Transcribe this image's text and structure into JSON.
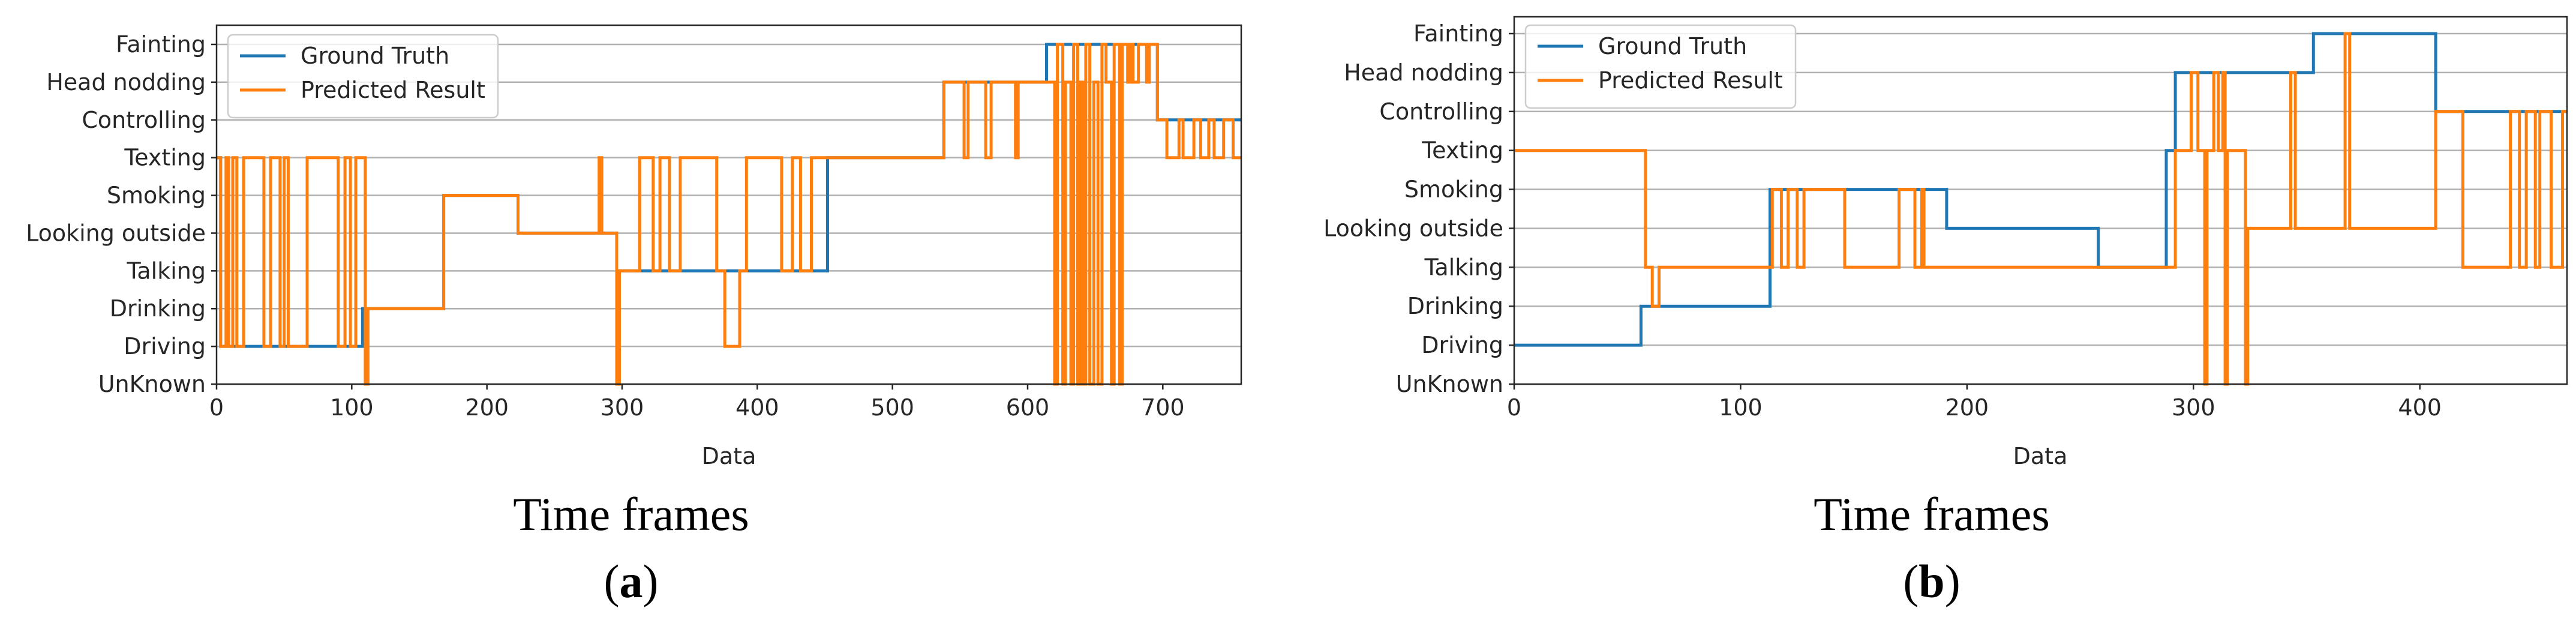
{
  "colors": {
    "ground_truth": "#1f77b4",
    "predicted": "#ff7f0e"
  },
  "chart_data": [
    {
      "type": "line",
      "panel": "a",
      "xlabel": "Data",
      "ylabel": "",
      "caption": "Time frames",
      "panel_label_open": "(",
      "panel_label_letter": "a",
      "panel_label_close": ")",
      "xlim": [
        0,
        758
      ],
      "xticks": [
        0,
        100,
        200,
        300,
        400,
        500,
        600,
        700
      ],
      "categories": [
        "UnKnown",
        "Driving",
        "Drinking",
        "Talking",
        "Looking outside",
        "Smoking",
        "Texting",
        "Controlling",
        "Head nodding",
        "Fainting"
      ],
      "grid": true,
      "legend_position": "top-left",
      "series": [
        {
          "name": "Ground Truth",
          "color": "#1f77b4",
          "points": [
            [
              0,
              6
            ],
            [
              3,
              6
            ],
            [
              3,
              1
            ],
            [
              108,
              1
            ],
            [
              108,
              2
            ],
            [
              168,
              2
            ],
            [
              168,
              5
            ],
            [
              223,
              5
            ],
            [
              223,
              4
            ],
            [
              296,
              4
            ],
            [
              296,
              3
            ],
            [
              452,
              3
            ],
            [
              452,
              6
            ],
            [
              538,
              6
            ],
            [
              538,
              8
            ],
            [
              614,
              8
            ],
            [
              614,
              9
            ],
            [
              696,
              9
            ],
            [
              696,
              7
            ],
            [
              758,
              7
            ]
          ]
        },
        {
          "name": "Predicted Result",
          "color": "#ff7f0e",
          "points": [
            [
              0,
              6
            ],
            [
              3,
              6
            ],
            [
              3,
              1
            ],
            [
              7,
              1
            ],
            [
              7,
              6
            ],
            [
              9,
              6
            ],
            [
              9,
              1
            ],
            [
              12,
              1
            ],
            [
              12,
              6
            ],
            [
              15,
              6
            ],
            [
              15,
              1
            ],
            [
              20,
              1
            ],
            [
              20,
              6
            ],
            [
              35,
              6
            ],
            [
              35,
              1
            ],
            [
              40,
              1
            ],
            [
              40,
              6
            ],
            [
              47,
              6
            ],
            [
              47,
              1
            ],
            [
              50,
              1
            ],
            [
              50,
              6
            ],
            [
              53,
              6
            ],
            [
              53,
              1
            ],
            [
              67,
              1
            ],
            [
              67,
              6
            ],
            [
              90,
              6
            ],
            [
              90,
              1
            ],
            [
              95,
              1
            ],
            [
              95,
              6
            ],
            [
              99,
              6
            ],
            [
              99,
              1
            ],
            [
              103,
              1
            ],
            [
              103,
              6
            ],
            [
              110,
              6
            ],
            [
              110,
              0
            ],
            [
              112,
              0
            ],
            [
              112,
              2
            ],
            [
              168,
              2
            ],
            [
              168,
              5
            ],
            [
              223,
              5
            ],
            [
              223,
              4
            ],
            [
              283,
              4
            ],
            [
              283,
              6
            ],
            [
              285,
              6
            ],
            [
              285,
              4
            ],
            [
              296,
              4
            ],
            [
              296,
              0
            ],
            [
              298,
              0
            ],
            [
              298,
              3
            ],
            [
              313,
              3
            ],
            [
              313,
              6
            ],
            [
              323,
              6
            ],
            [
              323,
              3
            ],
            [
              328,
              3
            ],
            [
              328,
              6
            ],
            [
              335,
              6
            ],
            [
              335,
              3
            ],
            [
              343,
              3
            ],
            [
              343,
              6
            ],
            [
              370,
              6
            ],
            [
              370,
              3
            ],
            [
              376,
              3
            ],
            [
              376,
              1
            ],
            [
              387,
              1
            ],
            [
              387,
              3
            ],
            [
              392,
              3
            ],
            [
              392,
              6
            ],
            [
              418,
              6
            ],
            [
              418,
              3
            ],
            [
              426,
              3
            ],
            [
              426,
              6
            ],
            [
              432,
              6
            ],
            [
              432,
              3
            ],
            [
              440,
              3
            ],
            [
              440,
              6
            ],
            [
              452,
              6
            ],
            [
              452,
              6
            ],
            [
              538,
              6
            ],
            [
              538,
              8
            ],
            [
              553,
              8
            ],
            [
              553,
              6
            ],
            [
              556,
              6
            ],
            [
              556,
              8
            ],
            [
              569,
              8
            ],
            [
              569,
              6
            ],
            [
              573,
              6
            ],
            [
              573,
              8
            ],
            [
              591,
              8
            ],
            [
              591,
              6
            ],
            [
              593,
              6
            ],
            [
              593,
              8
            ],
            [
              620,
              8
            ],
            [
              620,
              0
            ],
            [
              622,
              0
            ],
            [
              622,
              9
            ],
            [
              626,
              9
            ],
            [
              626,
              0
            ],
            [
              628,
              0
            ],
            [
              628,
              8
            ],
            [
              632,
              8
            ],
            [
              632,
              0
            ],
            [
              634,
              0
            ],
            [
              634,
              9
            ],
            [
              637,
              9
            ],
            [
              637,
              0
            ],
            [
              639,
              0
            ],
            [
              639,
              8
            ],
            [
              641,
              8
            ],
            [
              641,
              0
            ],
            [
              643,
              0
            ],
            [
              643,
              9
            ],
            [
              646,
              9
            ],
            [
              646,
              0
            ],
            [
              649,
              0
            ],
            [
              649,
              8
            ],
            [
              652,
              8
            ],
            [
              652,
              0
            ],
            [
              655,
              0
            ],
            [
              655,
              9
            ],
            [
              658,
              9
            ],
            [
              658,
              8
            ],
            [
              662,
              8
            ],
            [
              662,
              0
            ],
            [
              664,
              0
            ],
            [
              664,
              9
            ],
            [
              668,
              9
            ],
            [
              668,
              0
            ],
            [
              670,
              0
            ],
            [
              670,
              9
            ],
            [
              674,
              9
            ],
            [
              674,
              8
            ],
            [
              676,
              8
            ],
            [
              676,
              9
            ],
            [
              678,
              9
            ],
            [
              678,
              8
            ],
            [
              682,
              8
            ],
            [
              682,
              9
            ],
            [
              688,
              9
            ],
            [
              688,
              8
            ],
            [
              690,
              8
            ],
            [
              690,
              9
            ],
            [
              696,
              9
            ],
            [
              696,
              7
            ],
            [
              703,
              7
            ],
            [
              703,
              6
            ],
            [
              712,
              6
            ],
            [
              712,
              7
            ],
            [
              715,
              7
            ],
            [
              715,
              6
            ],
            [
              723,
              6
            ],
            [
              723,
              7
            ],
            [
              728,
              7
            ],
            [
              728,
              6
            ],
            [
              734,
              6
            ],
            [
              734,
              7
            ],
            [
              738,
              7
            ],
            [
              738,
              6
            ],
            [
              745,
              6
            ],
            [
              745,
              7
            ],
            [
              752,
              7
            ],
            [
              752,
              6
            ],
            [
              758,
              6
            ]
          ]
        }
      ]
    },
    {
      "type": "line",
      "panel": "b",
      "xlabel": "Data",
      "ylabel": "",
      "caption": "Time frames",
      "panel_label_open": "(",
      "panel_label_letter": "b",
      "panel_label_close": ")",
      "xlim": [
        0,
        465
      ],
      "xticks": [
        0,
        100,
        200,
        300,
        400
      ],
      "categories": [
        "UnKnown",
        "Driving",
        "Drinking",
        "Talking",
        "Looking outside",
        "Smoking",
        "Texting",
        "Controlling",
        "Head nodding",
        "Fainting"
      ],
      "grid": true,
      "legend_position": "top-left",
      "series": [
        {
          "name": "Ground Truth",
          "color": "#1f77b4",
          "points": [
            [
              0,
              1
            ],
            [
              56,
              1
            ],
            [
              56,
              2
            ],
            [
              113,
              2
            ],
            [
              113,
              5
            ],
            [
              191,
              5
            ],
            [
              191,
              4
            ],
            [
              258,
              4
            ],
            [
              258,
              3
            ],
            [
              288,
              3
            ],
            [
              288,
              6
            ],
            [
              292,
              6
            ],
            [
              292,
              8
            ],
            [
              353,
              8
            ],
            [
              353,
              9
            ],
            [
              407,
              9
            ],
            [
              407,
              7
            ],
            [
              465,
              7
            ]
          ]
        },
        {
          "name": "Predicted Result",
          "color": "#ff7f0e",
          "points": [
            [
              0,
              6
            ],
            [
              58,
              6
            ],
            [
              58,
              3
            ],
            [
              61,
              3
            ],
            [
              61,
              2
            ],
            [
              64,
              2
            ],
            [
              64,
              3
            ],
            [
              114,
              3
            ],
            [
              114,
              5
            ],
            [
              118,
              5
            ],
            [
              118,
              3
            ],
            [
              121,
              3
            ],
            [
              121,
              5
            ],
            [
              125,
              5
            ],
            [
              125,
              3
            ],
            [
              128,
              3
            ],
            [
              128,
              5
            ],
            [
              146,
              5
            ],
            [
              146,
              3
            ],
            [
              170,
              3
            ],
            [
              170,
              5
            ],
            [
              177,
              5
            ],
            [
              177,
              3
            ],
            [
              180,
              3
            ],
            [
              180,
              5
            ],
            [
              181,
              5
            ],
            [
              181,
              3
            ],
            [
              286,
              3
            ],
            [
              286,
              3
            ],
            [
              292,
              3
            ],
            [
              292,
              6
            ],
            [
              299,
              6
            ],
            [
              299,
              8
            ],
            [
              302,
              8
            ],
            [
              302,
              6
            ],
            [
              305,
              6
            ],
            [
              305,
              0
            ],
            [
              306,
              0
            ],
            [
              306,
              6
            ],
            [
              309,
              6
            ],
            [
              309,
              8
            ],
            [
              311,
              8
            ],
            [
              311,
              6
            ],
            [
              313,
              6
            ],
            [
              313,
              8
            ],
            [
              314,
              8
            ],
            [
              314,
              0
            ],
            [
              315,
              0
            ],
            [
              315,
              6
            ],
            [
              323,
              6
            ],
            [
              323,
              0
            ],
            [
              324,
              0
            ],
            [
              324,
              4
            ],
            [
              343,
              4
            ],
            [
              343,
              8
            ],
            [
              345,
              8
            ],
            [
              345,
              4
            ],
            [
              367,
              4
            ],
            [
              367,
              9
            ],
            [
              369,
              9
            ],
            [
              369,
              4
            ],
            [
              407,
              4
            ],
            [
              407,
              7
            ],
            [
              419,
              7
            ],
            [
              419,
              3
            ],
            [
              440,
              3
            ],
            [
              440,
              7
            ],
            [
              444,
              7
            ],
            [
              444,
              3
            ],
            [
              447,
              3
            ],
            [
              447,
              7
            ],
            [
              451,
              7
            ],
            [
              451,
              3
            ],
            [
              453,
              3
            ],
            [
              453,
              7
            ],
            [
              458,
              7
            ],
            [
              458,
              3
            ],
            [
              463,
              3
            ],
            [
              463,
              7
            ],
            [
              465,
              7
            ]
          ]
        }
      ]
    }
  ]
}
